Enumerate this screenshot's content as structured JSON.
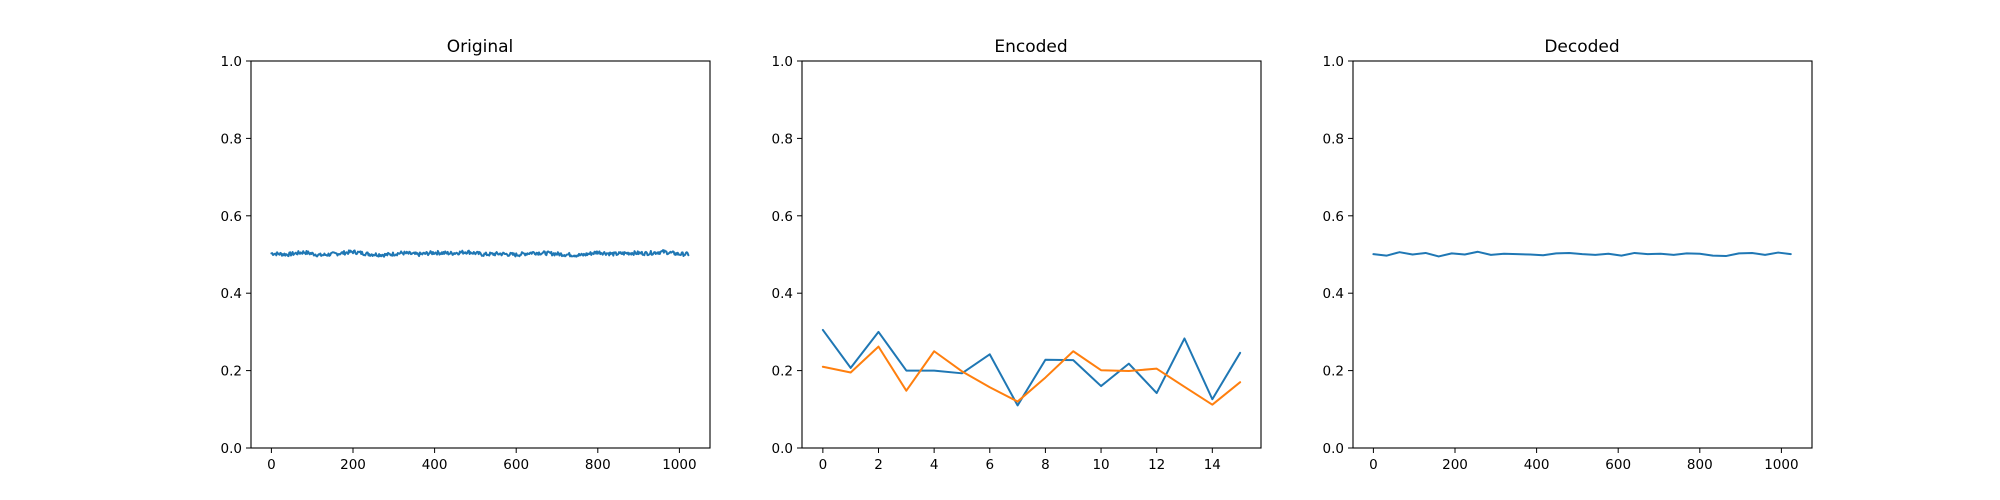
{
  "figure": {
    "background": "#ffffff"
  },
  "chart_data": [
    {
      "type": "line",
      "title": "Original",
      "xlabel": "",
      "ylabel": "",
      "xlim": [
        -50,
        1075
      ],
      "ylim": [
        0.0,
        1.0
      ],
      "xticks": [
        0,
        200,
        400,
        600,
        800,
        1000
      ],
      "xtick_labels": [
        "0",
        "200",
        "400",
        "600",
        "800",
        "1000"
      ],
      "yticks": [
        0.0,
        0.2,
        0.4,
        0.6,
        0.8,
        1.0
      ],
      "ytick_labels": [
        "0.0",
        "0.2",
        "0.4",
        "0.6",
        "0.8",
        "1.0"
      ],
      "grid": false,
      "noise_amplitude": 0.005,
      "series": [
        {
          "color": "#1f77b4",
          "x": [
            0,
            40,
            80,
            120,
            160,
            200,
            240,
            280,
            320,
            360,
            400,
            440,
            480,
            520,
            560,
            600,
            640,
            680,
            720,
            760,
            800,
            840,
            880,
            920,
            960,
            1000,
            1023
          ],
          "y": [
            0.503,
            0.5,
            0.506,
            0.498,
            0.502,
            0.507,
            0.501,
            0.499,
            0.504,
            0.5,
            0.505,
            0.503,
            0.507,
            0.5,
            0.502,
            0.499,
            0.505,
            0.503,
            0.5,
            0.498,
            0.506,
            0.501,
            0.504,
            0.503,
            0.507,
            0.501,
            0.501
          ]
        }
      ]
    },
    {
      "type": "line",
      "title": "Encoded",
      "xlabel": "",
      "ylabel": "",
      "xlim": [
        -0.75,
        15.75
      ],
      "ylim": [
        0.0,
        1.0
      ],
      "xticks": [
        0,
        2,
        4,
        6,
        8,
        10,
        12,
        14
      ],
      "xtick_labels": [
        "0",
        "2",
        "4",
        "6",
        "8",
        "10",
        "12",
        "14"
      ],
      "yticks": [
        0.0,
        0.2,
        0.4,
        0.6,
        0.8,
        1.0
      ],
      "ytick_labels": [
        "0.0",
        "0.2",
        "0.4",
        "0.6",
        "0.8",
        "1.0"
      ],
      "grid": false,
      "series": [
        {
          "color": "#1f77b4",
          "x": [
            0,
            1,
            2,
            3,
            4,
            5,
            6,
            7,
            8,
            9,
            10,
            11,
            12,
            13,
            14,
            15
          ],
          "y": [
            0.305,
            0.207,
            0.3,
            0.2,
            0.2,
            0.193,
            0.242,
            0.11,
            0.228,
            0.227,
            0.16,
            0.218,
            0.142,
            0.283,
            0.126,
            0.246
          ]
        },
        {
          "color": "#ff7f0e",
          "x": [
            0,
            1,
            2,
            3,
            4,
            5,
            6,
            7,
            8,
            9,
            10,
            11,
            12,
            13,
            14,
            15
          ],
          "y": [
            0.21,
            0.195,
            0.262,
            0.148,
            0.25,
            0.198,
            0.157,
            0.12,
            0.182,
            0.25,
            0.201,
            0.199,
            0.205,
            0.158,
            0.112,
            0.17
          ]
        }
      ]
    },
    {
      "type": "line",
      "title": "Decoded",
      "xlabel": "",
      "ylabel": "",
      "xlim": [
        -50,
        1075
      ],
      "ylim": [
        0.0,
        1.0
      ],
      "xticks": [
        0,
        200,
        400,
        600,
        800,
        1000
      ],
      "xtick_labels": [
        "0",
        "200",
        "400",
        "600",
        "800",
        "1000"
      ],
      "yticks": [
        0.0,
        0.2,
        0.4,
        0.6,
        0.8,
        1.0
      ],
      "ytick_labels": [
        "0.0",
        "0.2",
        "0.4",
        "0.6",
        "0.8",
        "1.0"
      ],
      "grid": false,
      "series": [
        {
          "color": "#1f77b4",
          "x": [
            0,
            32,
            64,
            96,
            128,
            160,
            192,
            224,
            256,
            288,
            320,
            352,
            384,
            416,
            448,
            480,
            512,
            544,
            576,
            608,
            640,
            672,
            704,
            736,
            768,
            800,
            832,
            864,
            896,
            928,
            960,
            992,
            1023
          ],
          "y": [
            0.501,
            0.497,
            0.506,
            0.5,
            0.504,
            0.495,
            0.503,
            0.5,
            0.507,
            0.499,
            0.502,
            0.501,
            0.5,
            0.498,
            0.503,
            0.504,
            0.501,
            0.499,
            0.502,
            0.497,
            0.504,
            0.501,
            0.502,
            0.499,
            0.503,
            0.502,
            0.497,
            0.496,
            0.503,
            0.504,
            0.499,
            0.505,
            0.501
          ]
        }
      ]
    }
  ]
}
